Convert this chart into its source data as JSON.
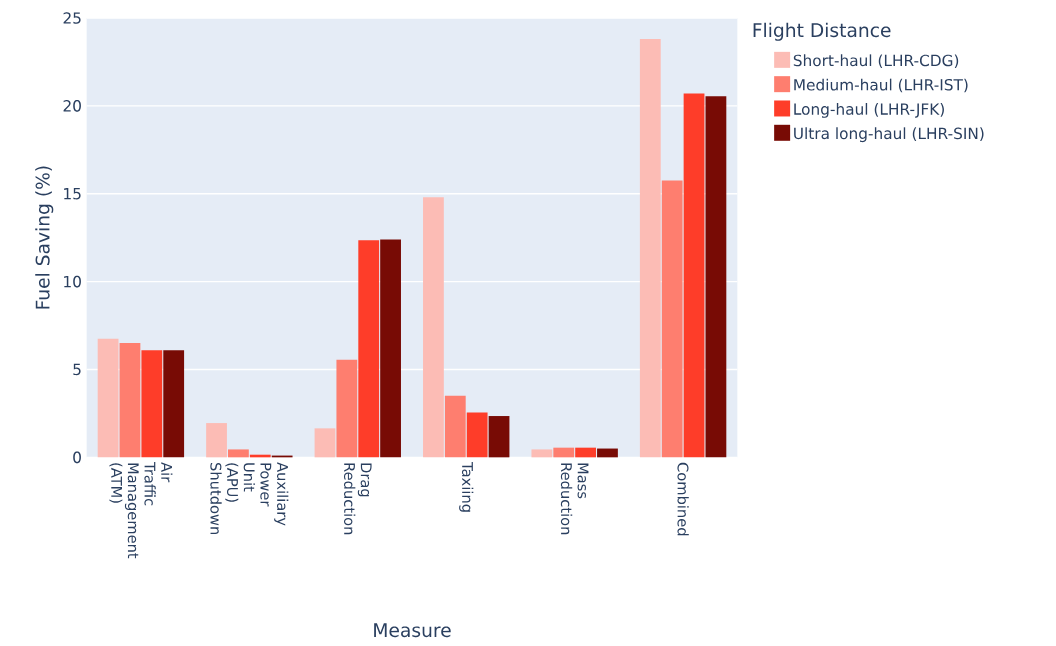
{
  "chart_data": {
    "type": "bar",
    "xlabel": "Measure",
    "ylabel": "Fuel Saving (%)",
    "legend_title": "Flight Distance",
    "categories": [
      "Air Traffic Management (ATM)",
      "Auxiliary Power Unit (APU) Shutdown",
      "Drag Reduction",
      "Taxiing",
      "Mass Reduction",
      "Combined"
    ],
    "series": [
      {
        "name": "Short-haul (LHR-CDG)",
        "color": "#fcbcb5",
        "values": [
          6.75,
          1.95,
          1.65,
          14.8,
          0.45,
          23.8
        ]
      },
      {
        "name": "Medium-haul (LHR-IST)",
        "color": "#fe7e6f",
        "values": [
          6.5,
          0.45,
          5.55,
          3.5,
          0.55,
          15.75
        ]
      },
      {
        "name": "Long-haul (LHR-JFK)",
        "color": "#fe3d29",
        "values": [
          6.1,
          0.15,
          12.35,
          2.55,
          0.55,
          20.7
        ]
      },
      {
        "name": "Ultra long-haul (LHR-SIN)",
        "color": "#780b05",
        "values": [
          6.1,
          0.1,
          12.4,
          2.35,
          0.5,
          20.55
        ]
      }
    ],
    "ylim": [
      0,
      25
    ],
    "yticks": [
      0,
      5,
      10,
      15,
      20,
      25
    ],
    "grid": "y",
    "legend": "top right"
  }
}
